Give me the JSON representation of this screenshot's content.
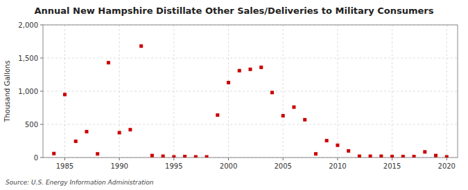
{
  "chart_data": {
    "type": "scatter",
    "title": "Annual New Hampshire Distillate Other Sales/Deliveries to Military Consumers",
    "y_label": "Thousand Gallons",
    "annotations": [
      "Source: U.S. Energy Information Administration"
    ],
    "color": "#cc0000",
    "marker": "square",
    "grid": true,
    "xlim": [
      1983,
      2021
    ],
    "ylim": [
      0,
      2000
    ],
    "xticks": [
      1985,
      1990,
      1995,
      2000,
      2005,
      2010,
      2015,
      2020
    ],
    "yticks": [
      0,
      500,
      {
        "value": 1000,
        "label": "1,000"
      },
      {
        "value": 1500,
        "label": "1,500"
      },
      {
        "value": 2000,
        "label": "2,000"
      }
    ],
    "x": [
      1984,
      1985,
      1986,
      1987,
      1988,
      1989,
      1990,
      1991,
      1992,
      1993,
      1994,
      1995,
      1996,
      1997,
      1998,
      1999,
      2000,
      2001,
      2002,
      2003,
      2004,
      2005,
      2006,
      2007,
      2008,
      2009,
      2010,
      2011,
      2012,
      2013,
      2014,
      2015,
      2016,
      2017,
      2018,
      2019,
      2020
    ],
    "values": [
      60,
      950,
      245,
      390,
      55,
      1430,
      375,
      420,
      1680,
      30,
      20,
      10,
      15,
      10,
      10,
      640,
      1130,
      1310,
      1330,
      1360,
      980,
      630,
      760,
      570,
      55,
      255,
      185,
      100,
      20,
      20,
      20,
      15,
      15,
      15,
      85,
      30,
      10
    ]
  }
}
